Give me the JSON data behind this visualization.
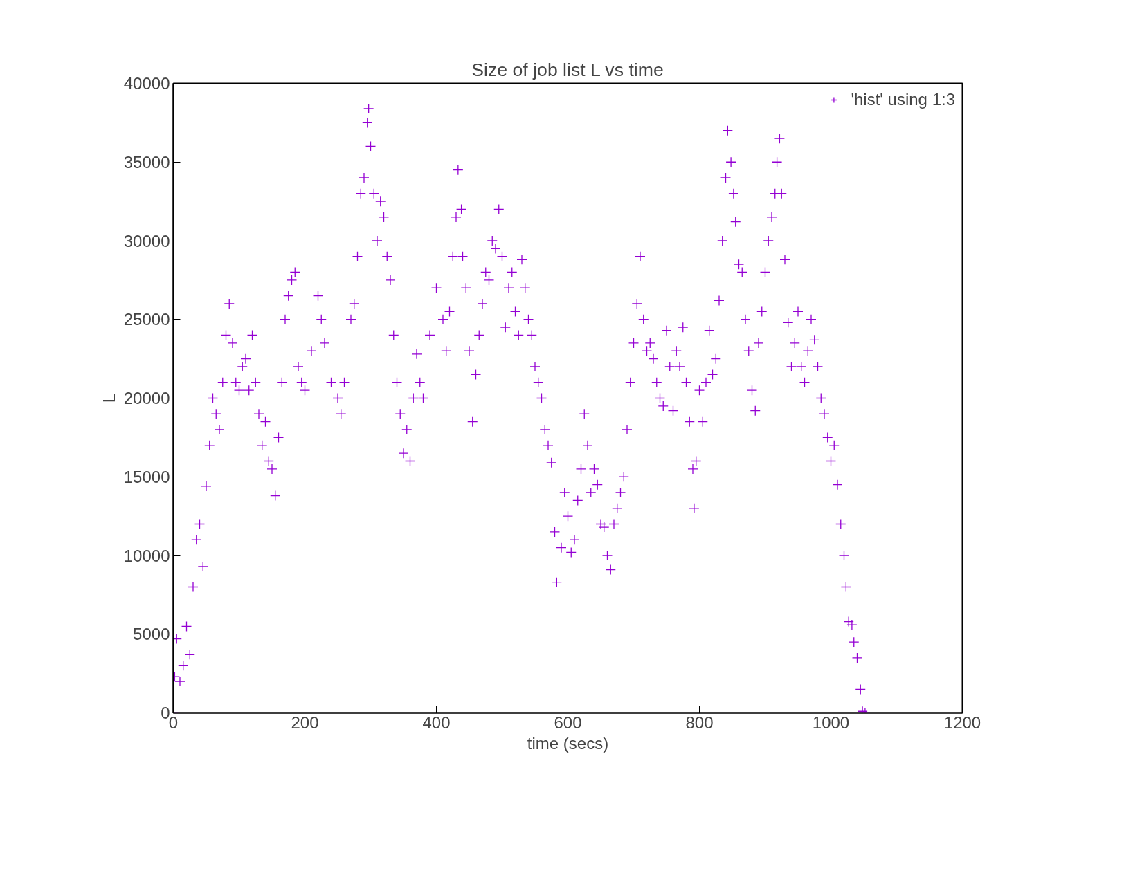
{
  "chart_data": {
    "type": "scatter",
    "title": "Size of job list L vs time",
    "xlabel": "time (secs)",
    "ylabel": "L",
    "xlim": [
      0,
      1200
    ],
    "ylim": [
      0,
      40000
    ],
    "xticks": [
      0,
      200,
      400,
      600,
      800,
      1000,
      1200
    ],
    "yticks": [
      0,
      5000,
      10000,
      15000,
      20000,
      25000,
      30000,
      35000,
      40000
    ],
    "grid": false,
    "legend": "top right",
    "marker": "cross",
    "series": [
      {
        "name": "'hist' using 1:3",
        "color": "#9400d3",
        "x": [
          0,
          2,
          5,
          10,
          15,
          20,
          25,
          30,
          35,
          40,
          45,
          50,
          55,
          60,
          65,
          70,
          75,
          80,
          85,
          90,
          95,
          100,
          105,
          110,
          115,
          120,
          125,
          130,
          135,
          140,
          145,
          150,
          155,
          160,
          165,
          170,
          175,
          180,
          185,
          190,
          195,
          200,
          210,
          220,
          225,
          230,
          240,
          250,
          255,
          260,
          270,
          275,
          280,
          285,
          290,
          295,
          297,
          300,
          305,
          310,
          315,
          320,
          325,
          330,
          335,
          340,
          345,
          350,
          355,
          360,
          365,
          370,
          375,
          380,
          390,
          400,
          410,
          415,
          420,
          425,
          430,
          433,
          438,
          440,
          445,
          450,
          455,
          460,
          465,
          470,
          475,
          480,
          485,
          490,
          495,
          500,
          505,
          510,
          515,
          520,
          525,
          530,
          535,
          540,
          545,
          550,
          555,
          560,
          565,
          570,
          575,
          580,
          583,
          590,
          595,
          600,
          605,
          610,
          615,
          620,
          625,
          630,
          635,
          640,
          645,
          650,
          655,
          660,
          665,
          670,
          675,
          680,
          685,
          690,
          695,
          700,
          705,
          710,
          715,
          720,
          725,
          730,
          735,
          740,
          745,
          750,
          755,
          760,
          765,
          770,
          775,
          780,
          785,
          790,
          792,
          795,
          800,
          805,
          810,
          815,
          820,
          825,
          830,
          835,
          840,
          843,
          848,
          852,
          855,
          860,
          865,
          870,
          875,
          880,
          885,
          890,
          895,
          900,
          905,
          910,
          915,
          918,
          922,
          925,
          930,
          935,
          940,
          945,
          950,
          955,
          960,
          965,
          970,
          975,
          980,
          985,
          990,
          995,
          1000,
          1005,
          1010,
          1015,
          1020,
          1023,
          1027,
          1032,
          1035,
          1040,
          1045,
          1048,
          1052
        ],
        "values": [
          0,
          2300,
          4700,
          2000,
          3000,
          5500,
          3700,
          8000,
          11000,
          12000,
          9300,
          14400,
          17000,
          20000,
          19000,
          18000,
          21000,
          24000,
          26000,
          23500,
          21000,
          20500,
          22000,
          22500,
          20500,
          24000,
          21000,
          19000,
          17000,
          18500,
          16000,
          15500,
          13800,
          17500,
          21000,
          25000,
          26500,
          27500,
          28000,
          22000,
          21000,
          20500,
          23000,
          26500,
          25000,
          23500,
          21000,
          20000,
          19000,
          21000,
          25000,
          26000,
          29000,
          33000,
          34000,
          37500,
          38400,
          36000,
          33000,
          30000,
          32500,
          31500,
          29000,
          27500,
          24000,
          21000,
          19000,
          16500,
          18000,
          16000,
          20000,
          22800,
          21000,
          20000,
          24000,
          27000,
          25000,
          23000,
          25500,
          29000,
          31500,
          34500,
          32000,
          29000,
          27000,
          23000,
          18500,
          21500,
          24000,
          26000,
          28000,
          27500,
          30000,
          29500,
          32000,
          29000,
          24500,
          27000,
          28000,
          25500,
          24000,
          28800,
          27000,
          25000,
          24000,
          22000,
          21000,
          20000,
          18000,
          17000,
          15900,
          11500,
          8300,
          10500,
          14000,
          12500,
          10200,
          11000,
          13500,
          15500,
          19000,
          17000,
          14000,
          15500,
          14500,
          12000,
          11800,
          10000,
          9100,
          12000,
          13000,
          14000,
          15000,
          18000,
          21000,
          23500,
          26000,
          29000,
          25000,
          23000,
          23500,
          22500,
          21000,
          20000,
          19500,
          24300,
          22000,
          19200,
          23000,
          22000,
          24500,
          21000,
          18500,
          15500,
          13000,
          16000,
          20500,
          18500,
          21000,
          24300,
          21500,
          22500,
          26200,
          30000,
          34000,
          37000,
          35000,
          33000,
          31200,
          28500,
          28000,
          25000,
          23000,
          20500,
          19200,
          23500,
          25500,
          28000,
          30000,
          31500,
          33000,
          35000,
          36500,
          33000,
          28800,
          24800,
          22000,
          23500,
          25500,
          22000,
          21000,
          23000,
          25000,
          23700,
          22000,
          20000,
          19000,
          17500,
          16000,
          17000,
          14500,
          12000,
          10000,
          8000,
          5800,
          5600,
          4500,
          3500,
          1500,
          100,
          0
        ]
      }
    ]
  }
}
